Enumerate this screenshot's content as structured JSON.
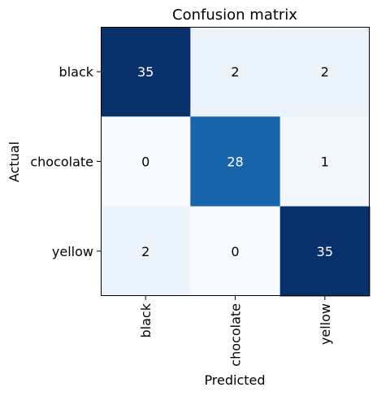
{
  "chart_data": {
    "type": "heatmap",
    "title": "Confusion matrix",
    "xlabel": "Predicted",
    "ylabel": "Actual",
    "x_categories": [
      "black",
      "chocolate",
      "yellow"
    ],
    "y_categories": [
      "black",
      "chocolate",
      "yellow"
    ],
    "values": [
      [
        35,
        2,
        2
      ],
      [
        0,
        28,
        1
      ],
      [
        2,
        0,
        35
      ]
    ],
    "colormap": "Blues",
    "color_low": "#f7fbff",
    "color_high": "#08306b",
    "text_light": "#ffffff",
    "text_dark": "#000000"
  }
}
